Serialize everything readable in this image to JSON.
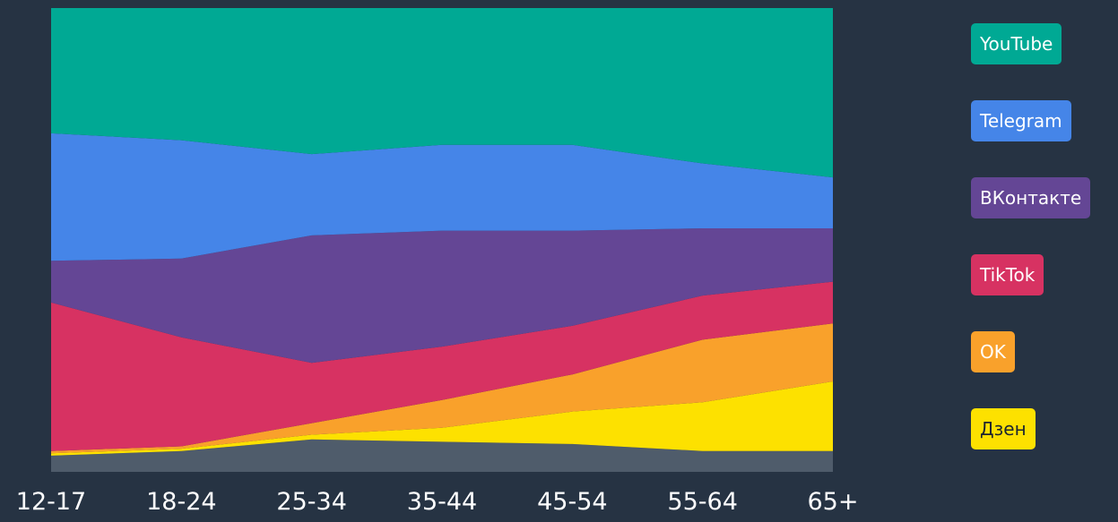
{
  "chart_data": {
    "type": "area",
    "stacked": true,
    "normalized": true,
    "categories": [
      "12-17",
      "18-24",
      "25-34",
      "35-44",
      "45-54",
      "55-64",
      "65+"
    ],
    "ylim": [
      0,
      100
    ],
    "grid": false,
    "legend_position": "right",
    "series": [
      {
        "name": "",
        "color": "#4f5c6b",
        "values": [
          3.5,
          4.5,
          7.0,
          6.5,
          6.0,
          4.5,
          4.5
        ]
      },
      {
        "name": "Дзен",
        "color": "#fde100",
        "values": [
          0.5,
          0.5,
          1.0,
          3.0,
          7.0,
          10.5,
          15.0
        ]
      },
      {
        "name": "OK",
        "color": "#f9a12b",
        "values": [
          0.5,
          0.5,
          2.5,
          6.0,
          8.0,
          13.5,
          12.5
        ]
      },
      {
        "name": "TikTok",
        "color": "#d73262",
        "values": [
          32.0,
          23.5,
          13.0,
          11.5,
          10.5,
          9.5,
          9.0
        ]
      },
      {
        "name": "ВКонтакте",
        "color": "#644695",
        "values": [
          9.0,
          17.0,
          27.5,
          25.0,
          20.5,
          14.5,
          11.5
        ]
      },
      {
        "name": "Telegram",
        "color": "#4585e8",
        "values": [
          27.5,
          25.5,
          17.5,
          18.5,
          18.5,
          14.0,
          11.0
        ]
      },
      {
        "name": "YouTube",
        "color": "#00a994",
        "values": [
          27.0,
          28.5,
          31.5,
          29.5,
          29.5,
          33.5,
          36.5
        ]
      }
    ]
  },
  "legend": [
    {
      "label": "YouTube",
      "color": "#00a994"
    },
    {
      "label": "Telegram",
      "color": "#4585e8"
    },
    {
      "label": "ВКонтакте",
      "color": "#644695"
    },
    {
      "label": "TikTok",
      "color": "#d73262"
    },
    {
      "label": "OK",
      "color": "#f9a12b"
    },
    {
      "label": "Дзен",
      "color": "#fde100"
    }
  ]
}
